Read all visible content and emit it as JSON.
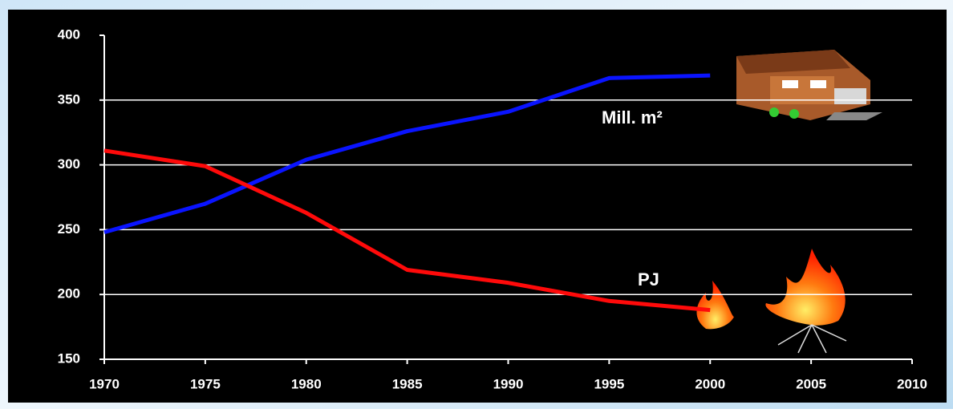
{
  "chart_data": {
    "type": "line",
    "x": [
      1970,
      1975,
      1980,
      1985,
      1990,
      1995,
      2000
    ],
    "series": [
      {
        "name": "Mill. m²",
        "color": "#0a14ff",
        "label_color": "#ffffff",
        "values": [
          248,
          270,
          304,
          326,
          341,
          367,
          369
        ]
      },
      {
        "name": "PJ",
        "color": "#ff0a0a",
        "label_color": "#33ccff",
        "values": [
          311,
          299,
          263,
          219,
          209,
          195,
          188
        ]
      }
    ],
    "xlim": [
      1970,
      2010
    ],
    "xticks": [
      1970,
      1975,
      1980,
      1985,
      1990,
      1995,
      2000,
      2005,
      2010
    ],
    "ylim": [
      150,
      400
    ],
    "yticks": [
      150,
      200,
      250,
      300,
      350,
      400
    ],
    "grid": true
  }
}
